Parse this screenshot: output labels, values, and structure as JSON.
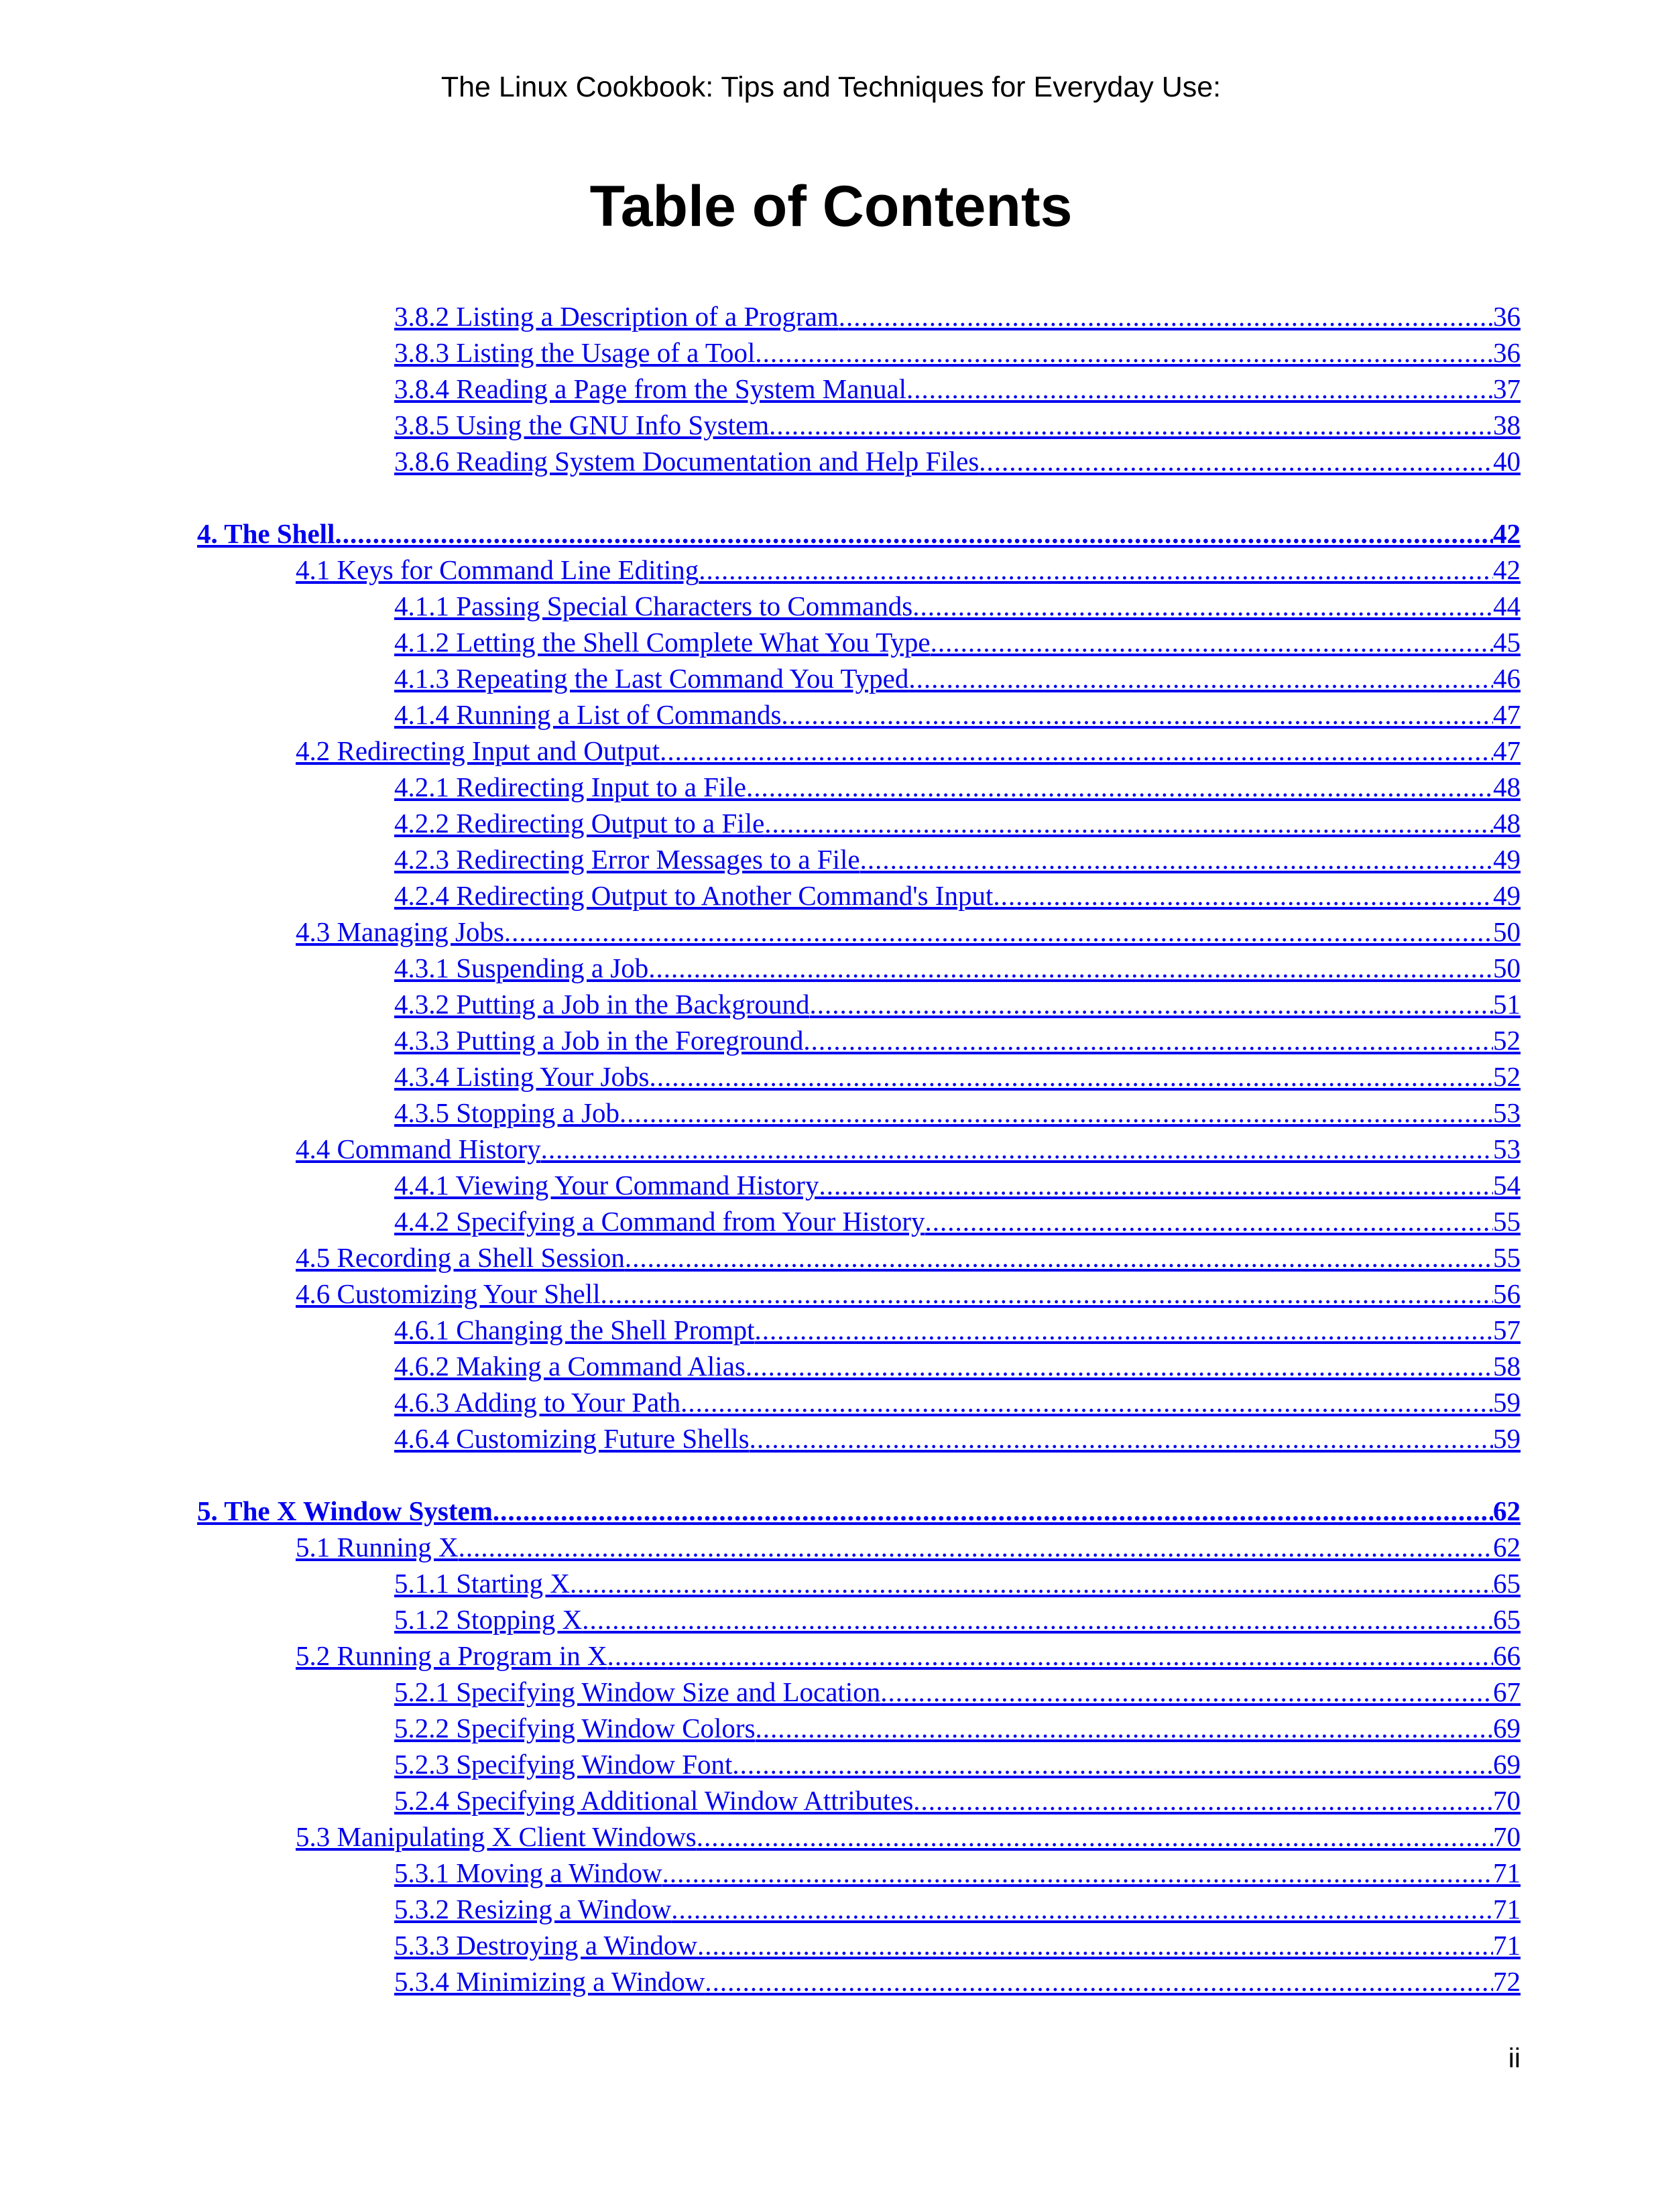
{
  "header": {
    "running_title": "The Linux Cookbook: Tips and Techniques for Everyday Use:",
    "page_title": "Table of Contents"
  },
  "toc": {
    "leader": "............................................................................................................................................................................................................................................................................................................................................................",
    "entries": [
      {
        "level": 3,
        "title": "3.8.2 Listing a Description of a Program",
        "page": "36"
      },
      {
        "level": 3,
        "title": "3.8.3 Listing the Usage of a Tool",
        "page": "36"
      },
      {
        "level": 3,
        "title": "3.8.4 Reading a Page from the System Manual",
        "page": "37"
      },
      {
        "level": 3,
        "title": "3.8.5 Using the GNU Info System",
        "page": "38"
      },
      {
        "level": 3,
        "title": "3.8.6 Reading System Documentation and Help Files",
        "page": "40"
      },
      {
        "level": 1,
        "title": "4. The Shell",
        "page": "42"
      },
      {
        "level": 2,
        "title": "4.1 Keys for Command Line Editing",
        "page": "42"
      },
      {
        "level": 3,
        "title": "4.1.1 Passing Special Characters to Commands",
        "page": "44"
      },
      {
        "level": 3,
        "title": "4.1.2 Letting the Shell Complete What You Type",
        "page": "45"
      },
      {
        "level": 3,
        "title": "4.1.3 Repeating the Last Command You Typed",
        "page": "46"
      },
      {
        "level": 3,
        "title": "4.1.4 Running a List of Commands",
        "page": "47"
      },
      {
        "level": 2,
        "title": "4.2 Redirecting Input and Output",
        "page": "47"
      },
      {
        "level": 3,
        "title": "4.2.1 Redirecting Input to a File",
        "page": "48"
      },
      {
        "level": 3,
        "title": "4.2.2 Redirecting Output to a File",
        "page": "48"
      },
      {
        "level": 3,
        "title": "4.2.3 Redirecting Error Messages to a File",
        "page": "49"
      },
      {
        "level": 3,
        "title": "4.2.4 Redirecting Output to Another Command's Input",
        "page": "49"
      },
      {
        "level": 2,
        "title": "4.3 Managing Jobs",
        "page": "50"
      },
      {
        "level": 3,
        "title": "4.3.1 Suspending a Job",
        "page": "50"
      },
      {
        "level": 3,
        "title": "4.3.2 Putting a Job in the Background",
        "page": "51"
      },
      {
        "level": 3,
        "title": "4.3.3 Putting a Job in the Foreground",
        "page": "52"
      },
      {
        "level": 3,
        "title": "4.3.4 Listing Your Jobs",
        "page": "52"
      },
      {
        "level": 3,
        "title": "4.3.5 Stopping a Job",
        "page": "53"
      },
      {
        "level": 2,
        "title": "4.4 Command History",
        "page": "53"
      },
      {
        "level": 3,
        "title": "4.4.1 Viewing Your Command History",
        "page": "54"
      },
      {
        "level": 3,
        "title": "4.4.2 Specifying a Command from Your History",
        "page": "55"
      },
      {
        "level": 2,
        "title": "4.5 Recording a Shell Session",
        "page": "55"
      },
      {
        "level": 2,
        "title": "4.6 Customizing Your Shell",
        "page": "56"
      },
      {
        "level": 3,
        "title": "4.6.1 Changing the Shell Prompt",
        "page": "57"
      },
      {
        "level": 3,
        "title": "4.6.2 Making a Command Alias",
        "page": "58"
      },
      {
        "level": 3,
        "title": "4.6.3 Adding to Your Path",
        "page": "59"
      },
      {
        "level": 3,
        "title": "4.6.4 Customizing Future Shells",
        "page": "59"
      },
      {
        "level": 1,
        "title": "5. The X Window System",
        "page": "62"
      },
      {
        "level": 2,
        "title": "5.1 Running X",
        "page": "62"
      },
      {
        "level": 3,
        "title": "5.1.1 Starting X",
        "page": "65"
      },
      {
        "level": 3,
        "title": "5.1.2 Stopping X",
        "page": "65"
      },
      {
        "level": 2,
        "title": "5.2 Running a Program in X",
        "page": "66"
      },
      {
        "level": 3,
        "title": "5.2.1 Specifying Window Size and Location",
        "page": "67"
      },
      {
        "level": 3,
        "title": "5.2.2 Specifying Window Colors",
        "page": "69"
      },
      {
        "level": 3,
        "title": "5.2.3 Specifying Window Font",
        "page": "69"
      },
      {
        "level": 3,
        "title": "5.2.4 Specifying Additional Window Attributes",
        "page": "70"
      },
      {
        "level": 2,
        "title": "5.3 Manipulating X Client Windows",
        "page": "70"
      },
      {
        "level": 3,
        "title": "5.3.1 Moving a Window",
        "page": "71"
      },
      {
        "level": 3,
        "title": "5.3.2 Resizing a Window",
        "page": "71"
      },
      {
        "level": 3,
        "title": "5.3.3 Destroying a Window",
        "page": "71"
      },
      {
        "level": 3,
        "title": "5.3.4 Minimizing a Window",
        "page": "72"
      }
    ]
  },
  "footer": {
    "page_number": "ii"
  }
}
